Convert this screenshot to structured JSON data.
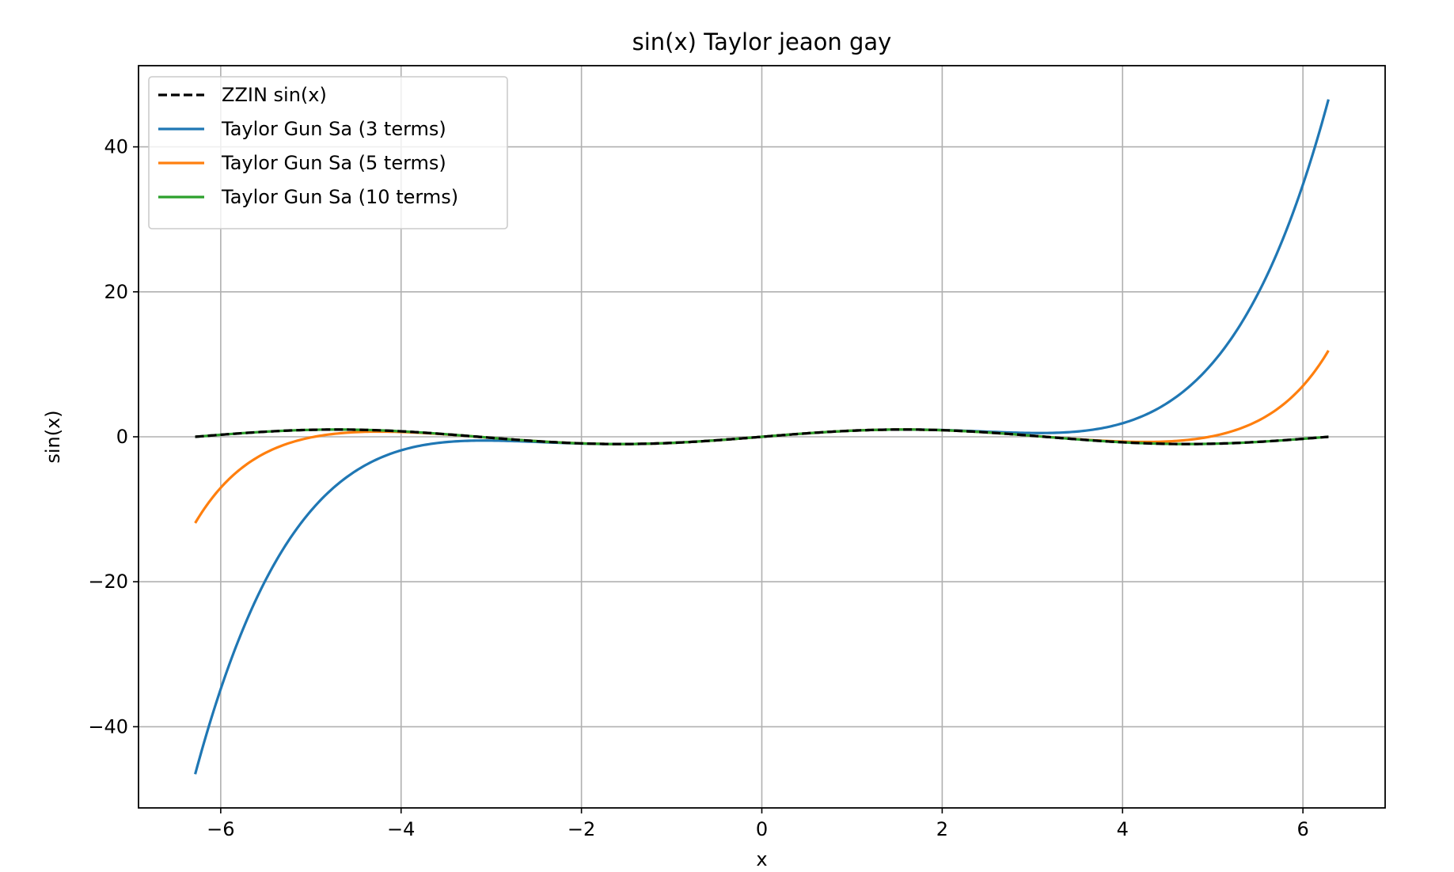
{
  "chart_data": {
    "type": "line",
    "title": "sin(x) Taylor jeaon gay",
    "xlabel": "x",
    "ylabel": "sin(x)",
    "xlim": [
      -6.9115,
      6.9115
    ],
    "ylim": [
      -51.2,
      51.2
    ],
    "x_range": [
      -6.2832,
      6.2832
    ],
    "xticks": [
      -6,
      -4,
      -2,
      0,
      2,
      4,
      6
    ],
    "xtick_labels": [
      "−6",
      "−4",
      "−2",
      "0",
      "2",
      "4",
      "6"
    ],
    "yticks": [
      -40,
      -20,
      0,
      20,
      40
    ],
    "ytick_labels": [
      "−40",
      "−20",
      "0",
      "20",
      "40"
    ],
    "grid": true,
    "legend_position": "upper-left",
    "series": [
      {
        "name": "ZZIN sin(x)",
        "function": "sin",
        "color": "#000000",
        "dashed": true
      },
      {
        "name": "Taylor Gun Sa (3 terms)",
        "terms": 3,
        "color": "#1f77b4",
        "dashed": false
      },
      {
        "name": "Taylor Gun Sa (5 terms)",
        "terms": 5,
        "color": "#ff7f0e",
        "dashed": false
      },
      {
        "name": "Taylor Gun Sa (10 terms)",
        "terms": 10,
        "color": "#2ca02c",
        "dashed": false
      }
    ]
  }
}
